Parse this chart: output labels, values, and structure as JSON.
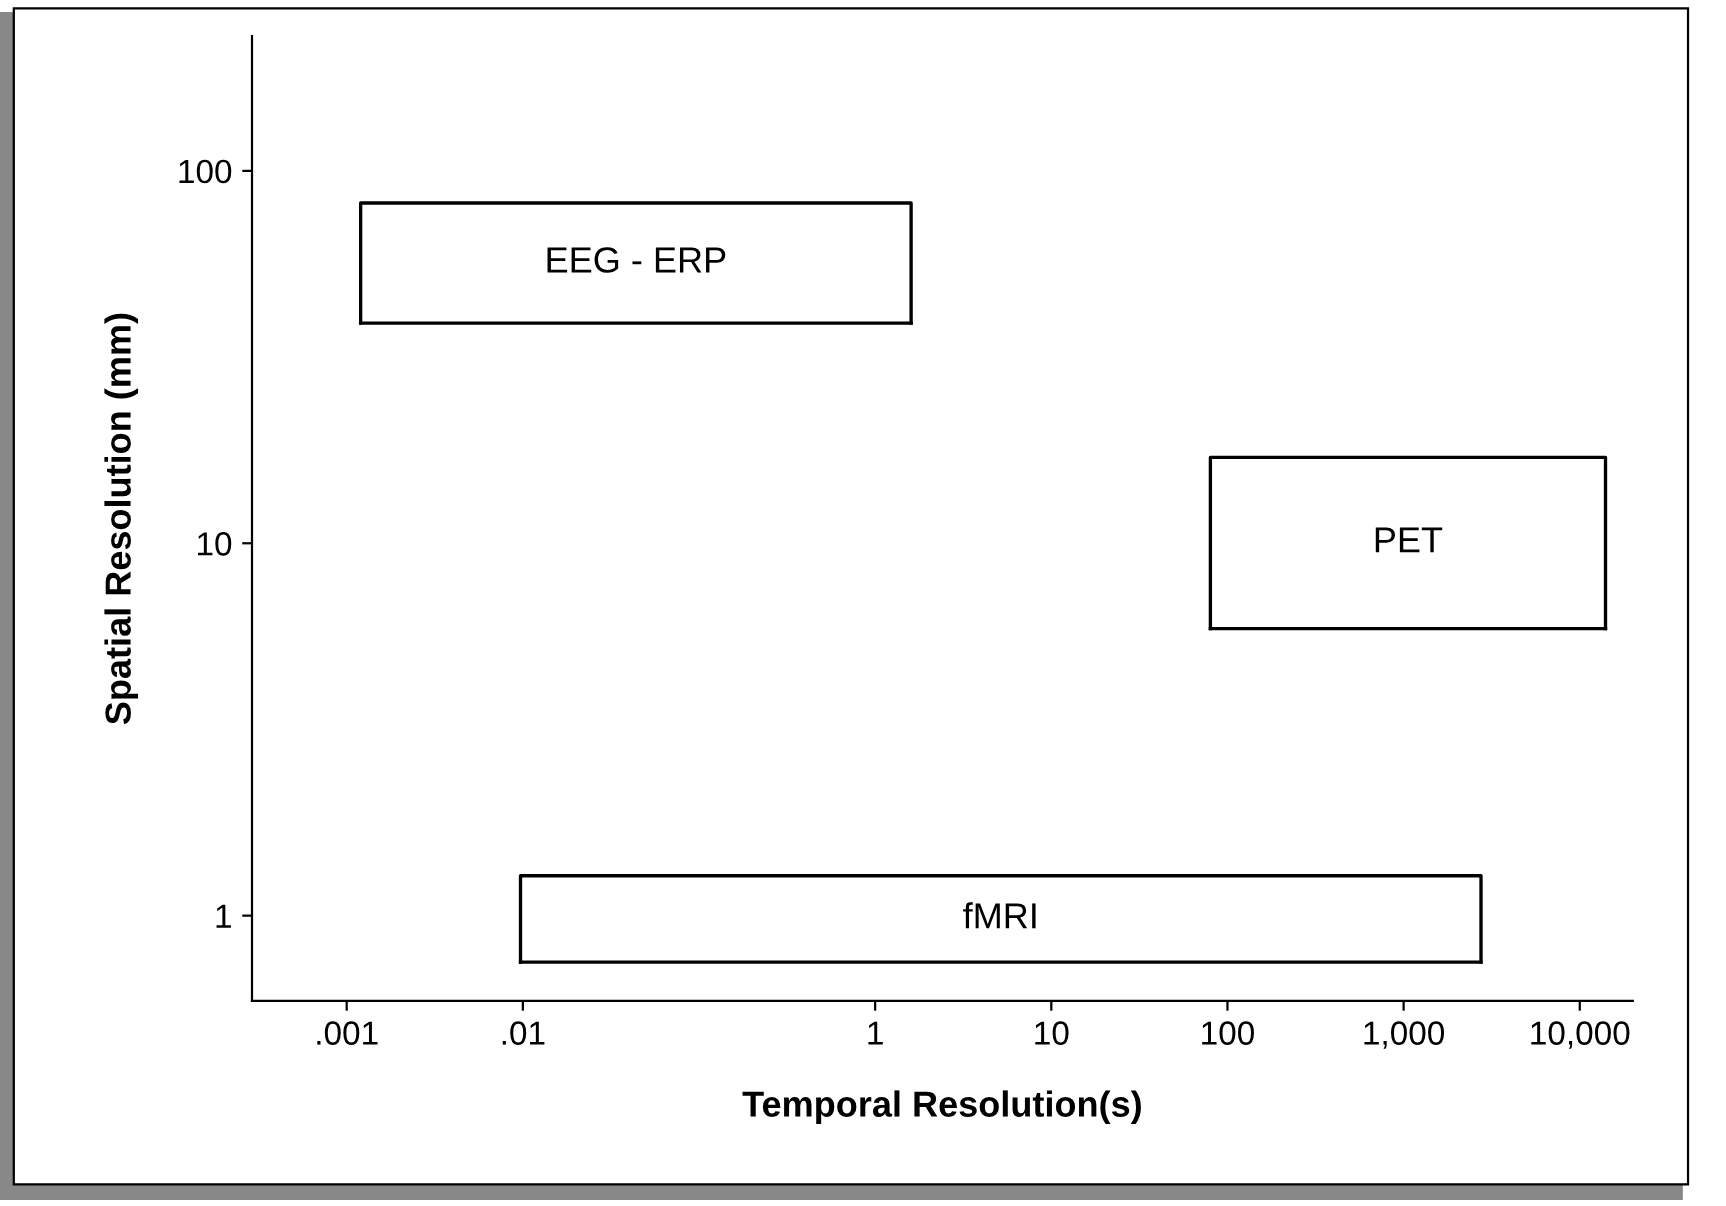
{
  "chart_data": {
    "type": "line",
    "xlabel": "Temporal Resolution(s)",
    "ylabel": "Spatial Resolution (mm)",
    "log": "xy",
    "xlim": [
      0.00029,
      20000
    ],
    "ylim": [
      0.59,
      230
    ],
    "xticks": [
      {
        "value": 0.001,
        "label": ".001"
      },
      {
        "value": 0.01,
        "label": ".01"
      },
      1,
      10,
      100,
      {
        "value": 1000,
        "label": "1,000"
      },
      {
        "value": 10000,
        "label": "10,000"
      }
    ],
    "yticks": [
      1,
      10,
      100
    ],
    "line_style": "solid",
    "series": [
      {
        "name": "EEG - ERP",
        "color": "#000000",
        "x": [
          0.0012,
          0.0012,
          1.6,
          1.6
        ],
        "values": [
          39,
          82,
          82,
          39
        ]
      },
      {
        "color": "#000000",
        "x": [
          0.0012,
          1.6
        ],
        "values": [
          39,
          39
        ]
      },
      {
        "name": "PET",
        "color": "#000000",
        "x": [
          80,
          80,
          14000,
          14000
        ],
        "values": [
          5.9,
          17,
          17,
          5.9
        ]
      },
      {
        "color": "#000000",
        "x": [
          80,
          14000
        ],
        "values": [
          5.9,
          5.9
        ]
      },
      {
        "name": "fMRI",
        "color": "#000000",
        "x": [
          0.0097,
          0.0097,
          2750,
          2750
        ],
        "values": [
          0.75,
          1.28,
          1.28,
          0.75
        ]
      },
      {
        "color": "#000000",
        "x": [
          0.0097,
          2750
        ],
        "values": [
          0.75,
          0.75
        ]
      }
    ]
  }
}
